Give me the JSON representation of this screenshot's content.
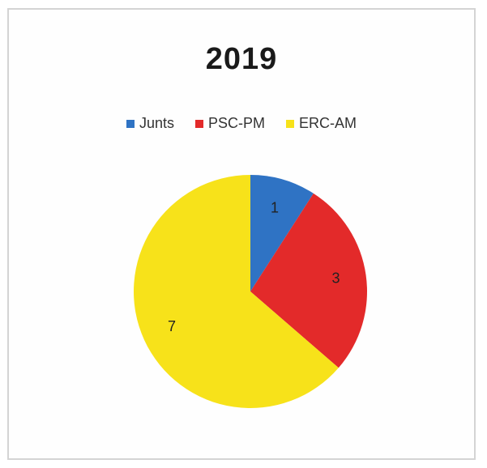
{
  "chart_data": {
    "type": "pie",
    "title": "2019",
    "categories": [
      "Junts",
      "PSC-PM",
      "ERC-AM"
    ],
    "values": [
      1,
      3,
      7
    ],
    "colors": [
      "#2f73c4",
      "#e32a2a",
      "#f7e21a"
    ],
    "data_labels": [
      "1",
      "3",
      "7"
    ],
    "legend_position": "top",
    "start_angle": "12 o'clock",
    "direction": "clockwise"
  }
}
